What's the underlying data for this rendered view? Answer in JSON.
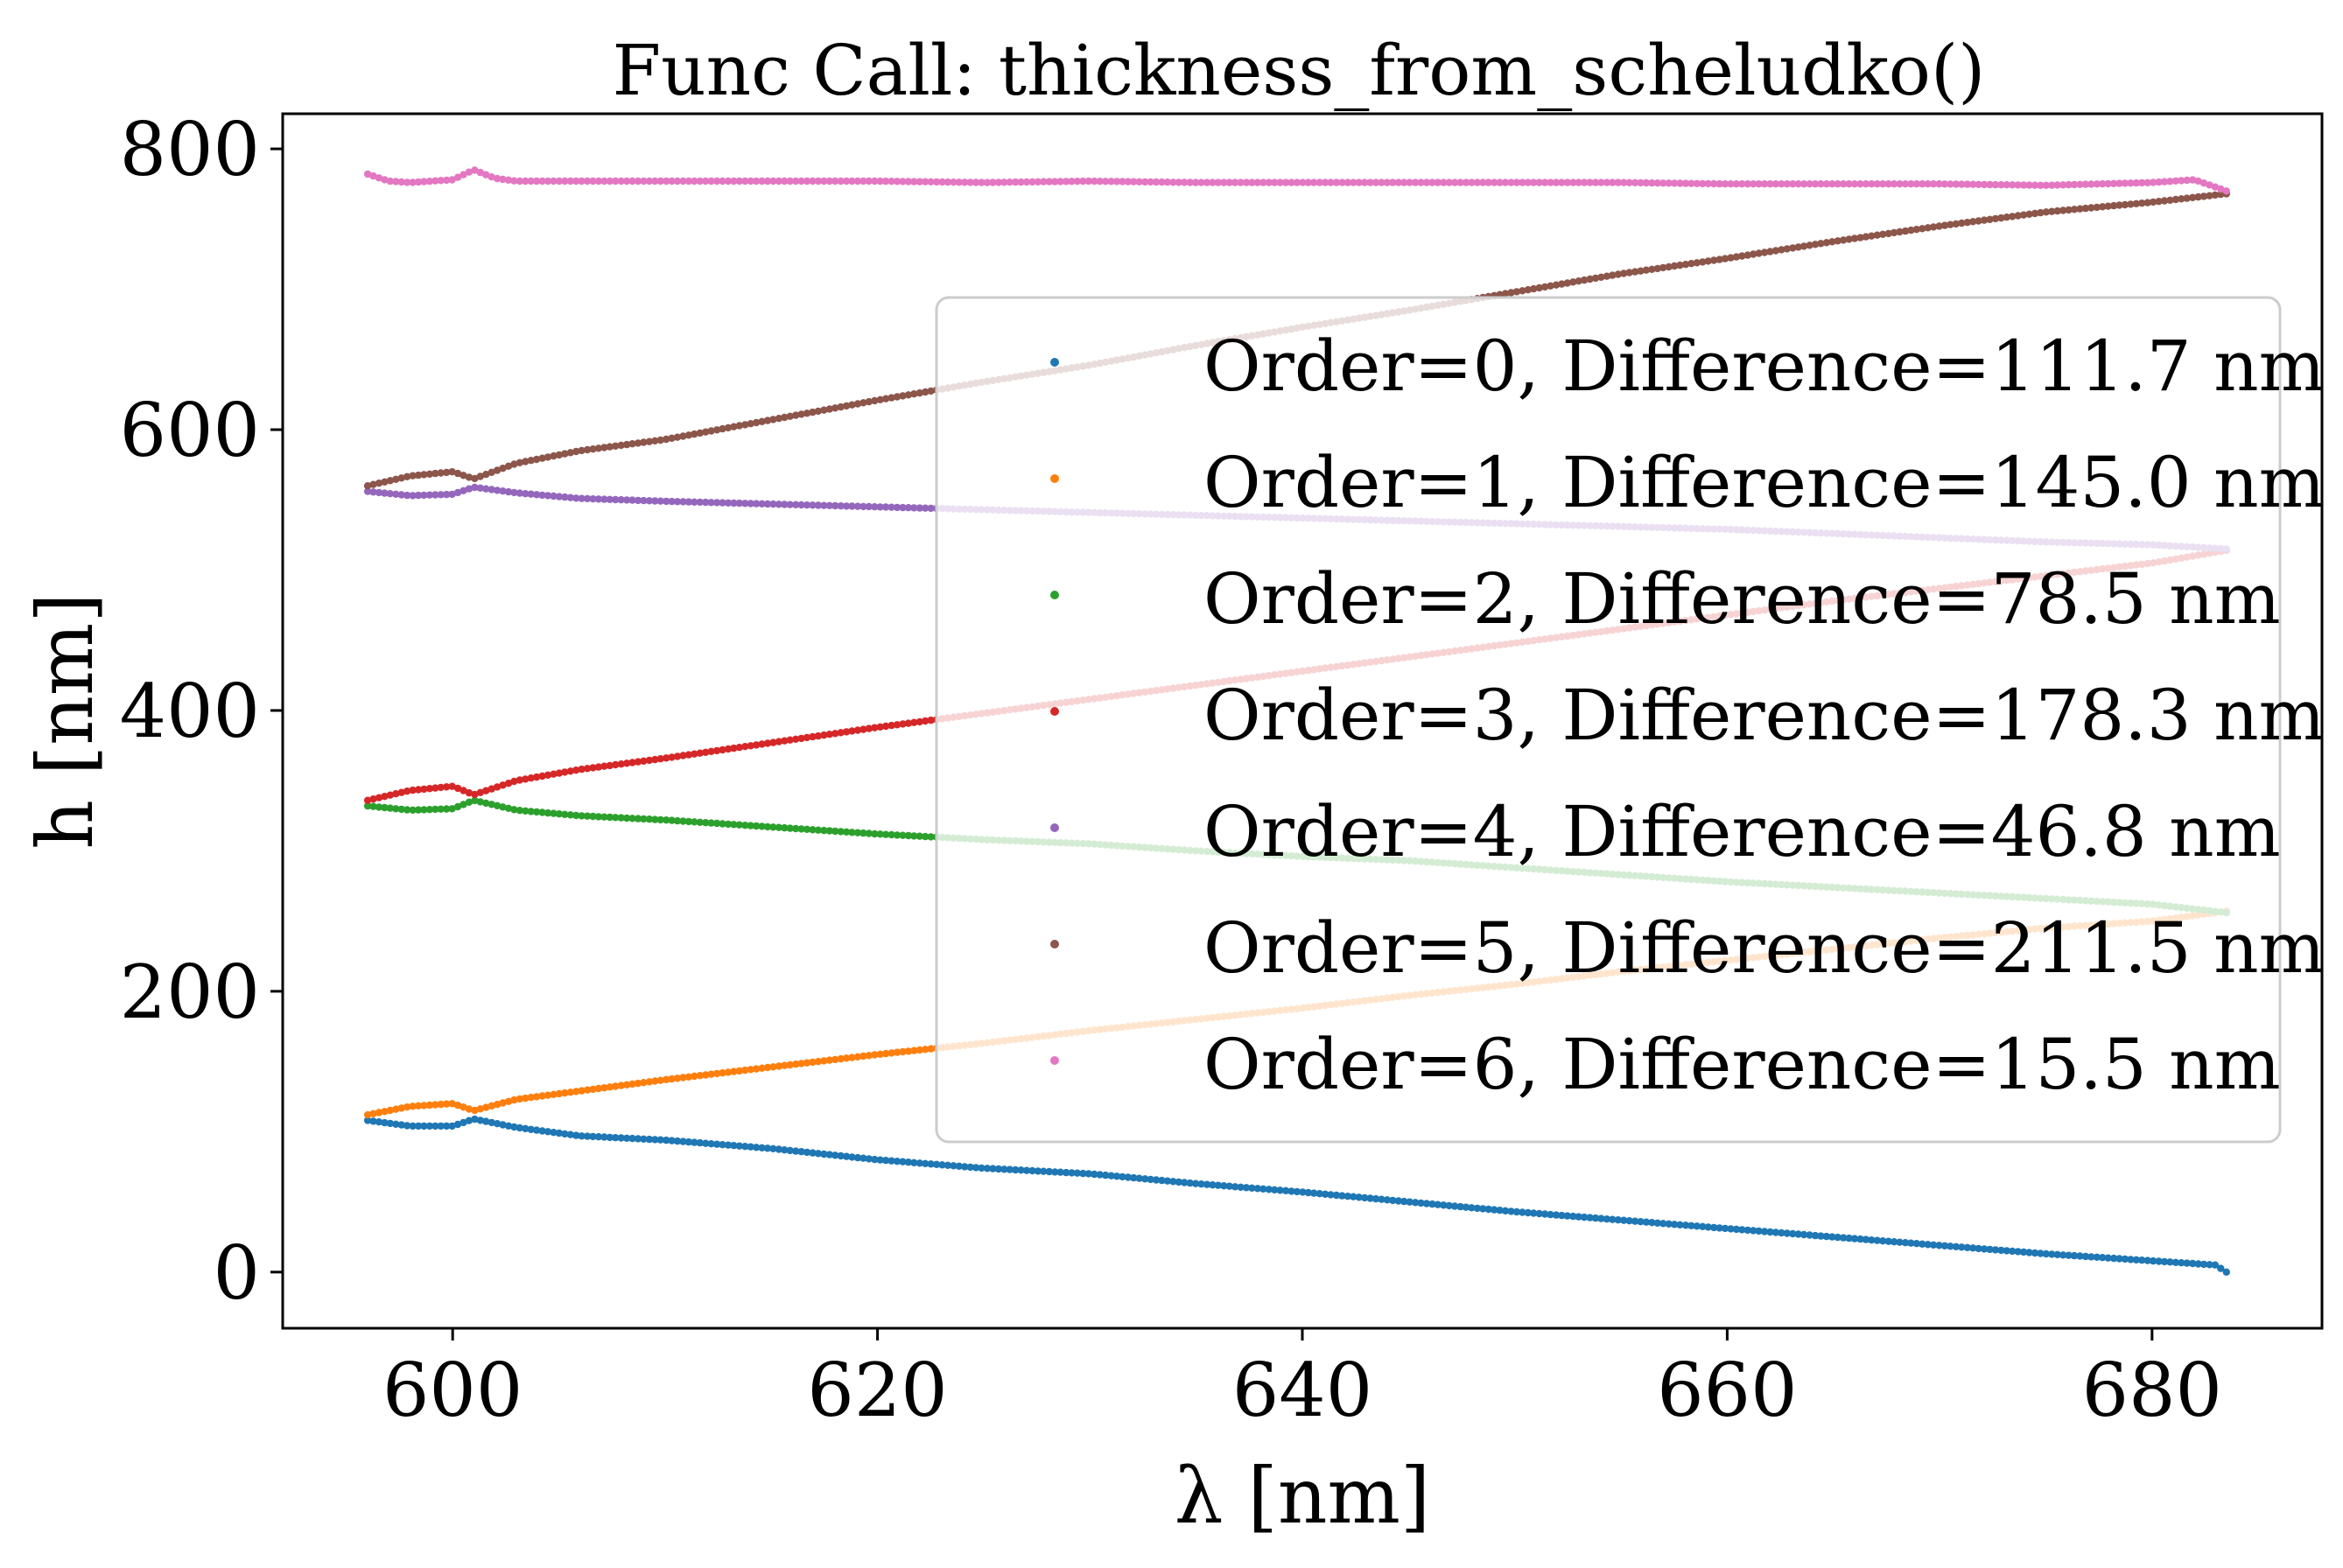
{
  "chart_data": {
    "type": "scatter",
    "title": "Func Call: thickness_from_scheludko()",
    "xlabel": "λ [nm]",
    "ylabel": "h [nm]",
    "xlim": [
      592,
      688
    ],
    "ylim": [
      -40,
      825
    ],
    "x_range": [
      596.0,
      683.5
    ],
    "x_ticks": [
      600,
      620,
      640,
      660,
      680
    ],
    "y_ticks": [
      0,
      200,
      400,
      600,
      800
    ],
    "grid": false,
    "legend_position": "center-right",
    "series": [
      {
        "name": "Order=0, Difference=111.7 nm",
        "color": "#1f77b4",
        "x": [
          596,
          598,
          600,
          601,
          603,
          606,
          610,
          615,
          620,
          625,
          630,
          635,
          640,
          645,
          650,
          655,
          660,
          665,
          670,
          675,
          680,
          683,
          683.5
        ],
        "y": [
          108,
          104,
          104,
          109,
          103,
          97,
          94,
          88,
          80,
          74,
          70,
          63,
          57,
          50,
          43,
          37,
          31,
          25,
          19,
          13,
          8,
          5,
          0
        ]
      },
      {
        "name": "Order=1, Difference=145.0 nm",
        "color": "#ff7f0e",
        "x": [
          596,
          598,
          600,
          601,
          603,
          606,
          610,
          615,
          620,
          625,
          630,
          635,
          640,
          645,
          650,
          655,
          660,
          665,
          670,
          675,
          680,
          683.5
        ],
        "y": [
          112,
          118,
          120,
          115,
          123,
          129,
          137,
          146,
          155,
          163,
          172,
          180,
          188,
          197,
          205,
          214,
          222,
          230,
          238,
          245,
          250,
          257
        ]
      },
      {
        "name": "Order=2, Difference=78.5 nm",
        "color": "#2ca02c",
        "x": [
          596,
          598,
          600,
          601,
          603,
          606,
          610,
          615,
          620,
          625,
          630,
          635,
          640,
          645,
          650,
          655,
          660,
          665,
          670,
          675,
          680,
          683.5
        ],
        "y": [
          332,
          329,
          330,
          336,
          329,
          325,
          322,
          317,
          312,
          308,
          305,
          300,
          296,
          293,
          288,
          283,
          278,
          274,
          270,
          266,
          262,
          256
        ]
      },
      {
        "name": "Order=3, Difference=178.3 nm",
        "color": "#d62728",
        "x": [
          596,
          598,
          600,
          601,
          603,
          606,
          610,
          615,
          620,
          625,
          630,
          635,
          640,
          645,
          650,
          655,
          660,
          665,
          670,
          675,
          680,
          683.5
        ],
        "y": [
          336,
          343,
          346,
          340,
          350,
          358,
          366,
          377,
          388,
          398,
          408,
          418,
          428,
          438,
          448,
          458,
          468,
          478,
          487,
          496,
          505,
          514
        ]
      },
      {
        "name": "Order=4, Difference=46.8 nm",
        "color": "#9467bd",
        "x": [
          596,
          598,
          600,
          601,
          603,
          606,
          610,
          615,
          620,
          625,
          630,
          635,
          640,
          645,
          650,
          655,
          660,
          665,
          670,
          675,
          680,
          683.5
        ],
        "y": [
          556,
          553,
          554,
          559,
          555,
          551,
          549,
          547,
          545,
          543,
          541,
          539,
          537,
          535,
          533,
          531,
          529,
          526,
          523,
          520,
          518,
          515
        ]
      },
      {
        "name": "Order=5, Difference=211.5 nm",
        "color": "#8c564b",
        "x": [
          596,
          598,
          600,
          601,
          603,
          606,
          610,
          615,
          620,
          625,
          630,
          635,
          640,
          645,
          650,
          655,
          660,
          665,
          670,
          675,
          680,
          683.5
        ],
        "y": [
          560,
          567,
          570,
          565,
          576,
          585,
          593,
          607,
          621,
          634,
          646,
          660,
          673,
          685,
          698,
          711,
          722,
          734,
          745,
          755,
          762,
          768
        ]
      },
      {
        "name": "Order=6, Difference=15.5 nm",
        "color": "#e377c2",
        "x": [
          596,
          597,
          598,
          600,
          601,
          602,
          603,
          606,
          610,
          615,
          620,
          625,
          630,
          635,
          640,
          645,
          650,
          655,
          660,
          665,
          670,
          675,
          680,
          682,
          683.5
        ],
        "y": [
          782,
          777,
          776,
          778,
          785,
          779,
          777,
          777,
          777,
          777,
          777,
          776,
          777,
          776,
          776,
          776,
          776,
          776,
          775,
          775,
          775,
          774,
          776,
          778,
          770
        ]
      }
    ]
  }
}
